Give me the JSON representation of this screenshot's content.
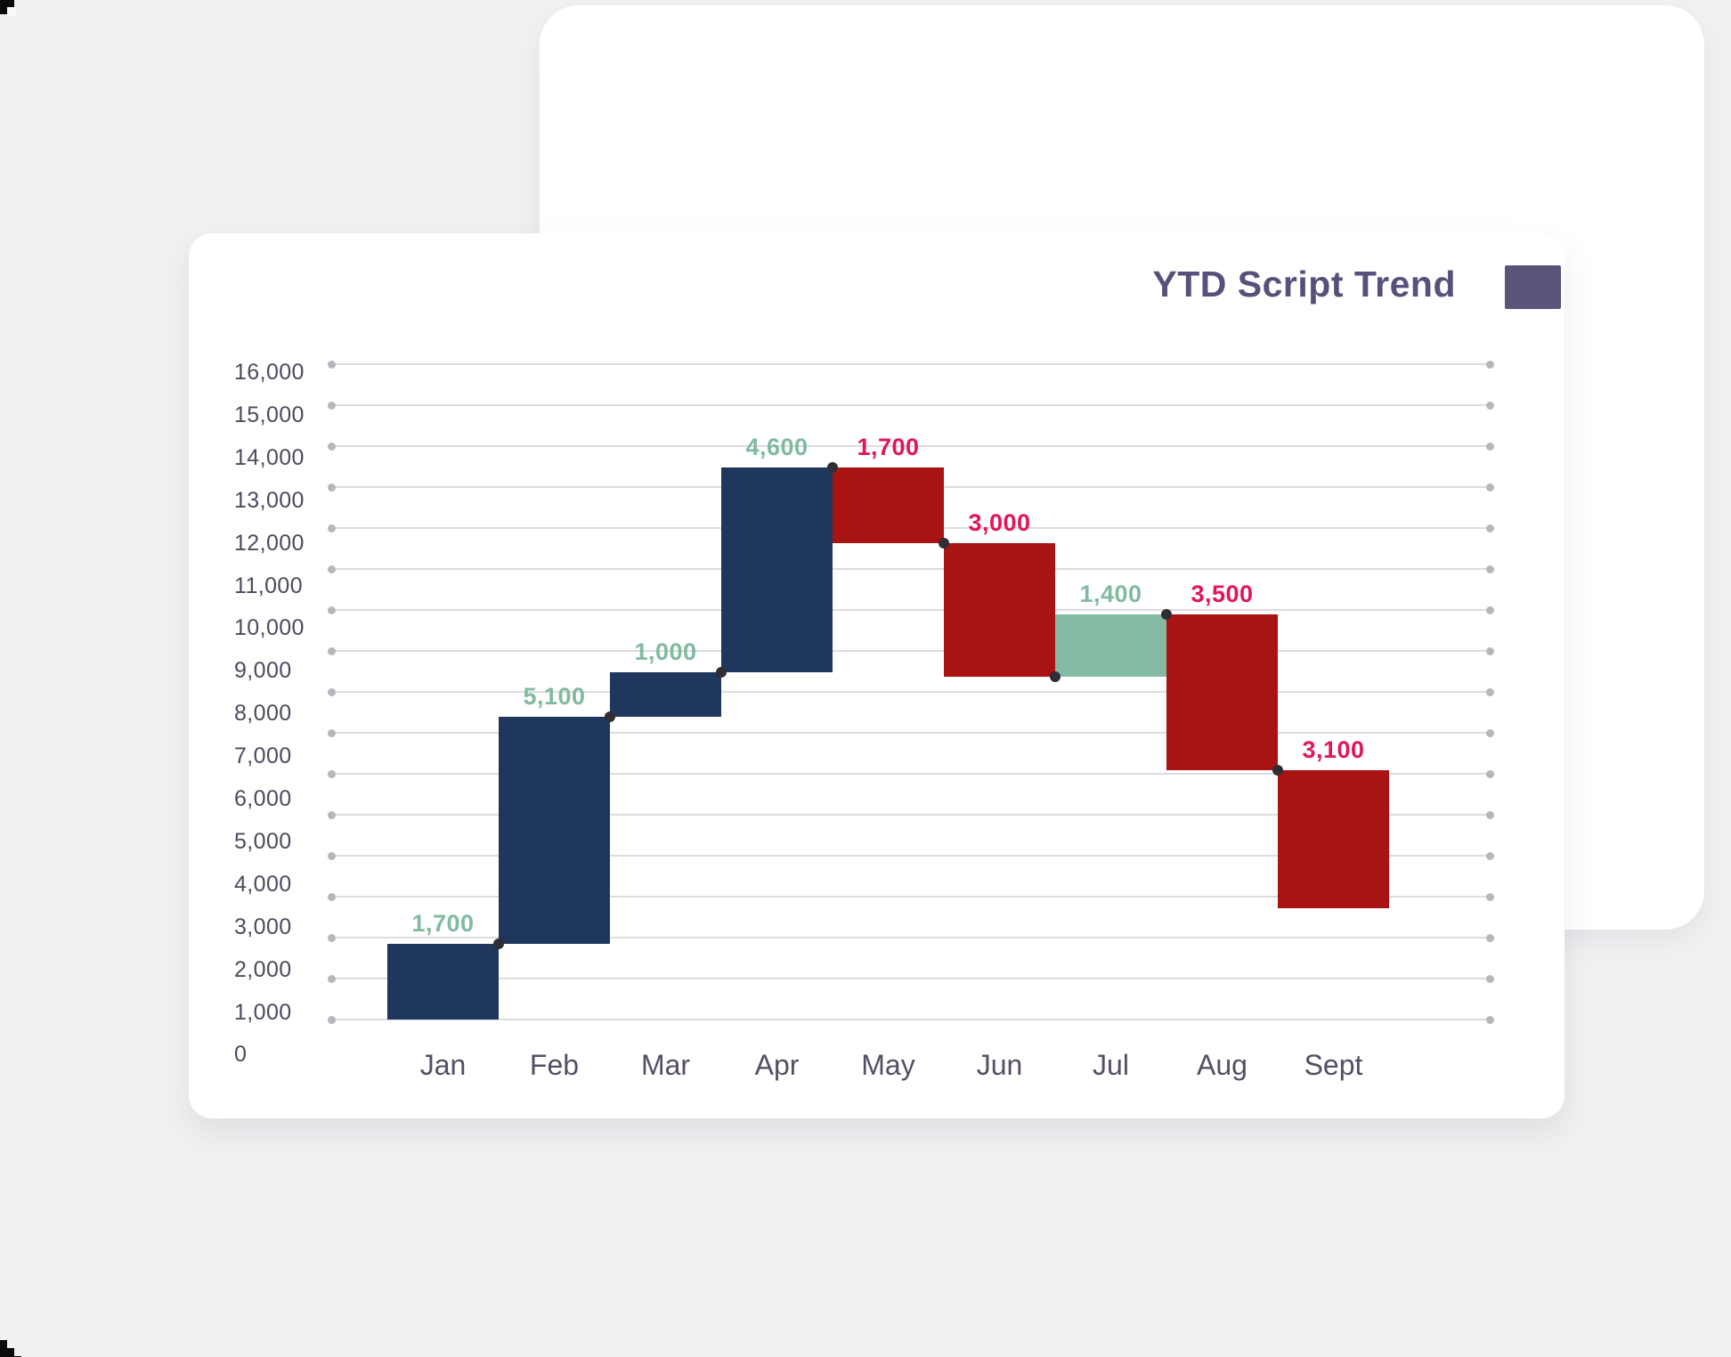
{
  "header": {
    "title": "YTD Script Trend"
  },
  "chart_data": {
    "type": "waterfall",
    "title": "YTD Script Trend",
    "categories": [
      "Jan",
      "Feb",
      "Mar",
      "Apr",
      "May",
      "Jun",
      "Jul",
      "Aug",
      "Sept"
    ],
    "deltas": [
      1700,
      5100,
      1000,
      4600,
      -1700,
      -3000,
      1400,
      -3500,
      -3100
    ],
    "data_labels": [
      "1,700",
      "5,100",
      "1,000",
      "4,600",
      "1,700",
      "3,000",
      "1,400",
      "3,500",
      "3,100"
    ],
    "cumulative_start": 0,
    "cumulative_levels": [
      1700,
      6800,
      7800,
      12400,
      10700,
      7700,
      9100,
      5600,
      2500
    ],
    "bar_color_roles": [
      "navy",
      "navy",
      "navy",
      "navy",
      "red",
      "red",
      "green",
      "red",
      "red"
    ],
    "y_axis": {
      "min": 0,
      "max": 16000,
      "step": 1000,
      "tick_labels": [
        "16,000",
        "15,000",
        "14,000",
        "13,000",
        "12,000",
        "11,000",
        "10,000",
        "9,000",
        "8,000",
        "7,000",
        "6,000",
        "5,000",
        "4,000",
        "3,000",
        "2,000",
        "1,000",
        "0"
      ]
    },
    "grid": true,
    "legend_position": "top-right",
    "colors": {
      "navy": "#1f375c",
      "red": "#a91313",
      "green": "#85bba3",
      "label_increase": "#80bb9e",
      "label_decrease": "#e2155c",
      "gridline": "#dcdce0",
      "grid_dot": "#b6b6bd",
      "connector_dot": "#2e2e33",
      "axis_text": "#4b4b5e",
      "month_text": "#515166",
      "title_text": "#55517a",
      "legend_swatch": "#5a5578",
      "background": "#f1f1f2",
      "card": "#ffffff"
    }
  }
}
